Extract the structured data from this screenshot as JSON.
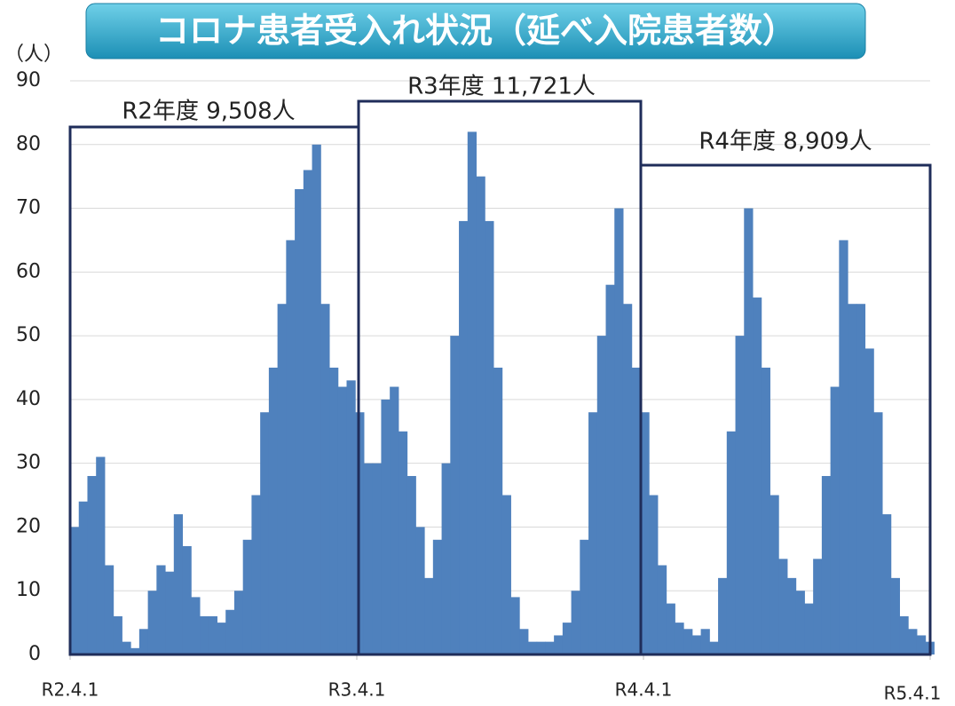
{
  "chart_data": {
    "type": "bar",
    "title": "コロナ患者受入れ状況（延べ入院患者数）",
    "y_label": "（人）",
    "annotations": [
      "R2年度 9,508人",
      "R3年度 11,721人",
      "R4年度 8,909人"
    ],
    "color": "#4f81bd",
    "grid": true,
    "xlim": [
      0,
      1095
    ],
    "xticks": [
      {
        "value": 0,
        "label": "R2.4.1"
      },
      {
        "value": 365,
        "label": "R3.4.1"
      },
      {
        "value": 730,
        "label": "R4.4.1"
      },
      {
        "value": 1095,
        "label": "R5.4.1"
      }
    ],
    "ylim": [
      0,
      90
    ],
    "yticks": [
      0,
      10,
      20,
      30,
      40,
      50,
      60,
      70,
      80,
      90
    ],
    "x": [
      0,
      11,
      22,
      33,
      44,
      55,
      66,
      77,
      88,
      99,
      110,
      121,
      132,
      143,
      154,
      165,
      176,
      187,
      198,
      209,
      220,
      231,
      242,
      253,
      264,
      275,
      286,
      297,
      308,
      319,
      330,
      341,
      352,
      363,
      374,
      385,
      396,
      407,
      418,
      429,
      440,
      451,
      462,
      473,
      484,
      495,
      506,
      517,
      528,
      539,
      550,
      561,
      572,
      583,
      594,
      605,
      616,
      627,
      638,
      649,
      660,
      671,
      682,
      693,
      704,
      715,
      726,
      737,
      748,
      759,
      770,
      781,
      792,
      803,
      814,
      825,
      836,
      847,
      858,
      869,
      880,
      891,
      902,
      913,
      924,
      935,
      946,
      957,
      968,
      979,
      990,
      1001,
      1012,
      1023,
      1034,
      1045,
      1056,
      1067,
      1078,
      1089
    ],
    "values": [
      20,
      24,
      28,
      31,
      14,
      6,
      2,
      1,
      4,
      10,
      14,
      13,
      22,
      17,
      9,
      6,
      6,
      5,
      7,
      10,
      18,
      25,
      38,
      45,
      55,
      65,
      73,
      76,
      80,
      55,
      45,
      42,
      43,
      38,
      30,
      30,
      40,
      42,
      35,
      28,
      20,
      12,
      18,
      30,
      50,
      68,
      82,
      75,
      68,
      45,
      25,
      9,
      4,
      2,
      2,
      2,
      3,
      5,
      10,
      18,
      38,
      50,
      58,
      70,
      55,
      45,
      38,
      25,
      14,
      8,
      5,
      4,
      3,
      4,
      2,
      12,
      35,
      50,
      70,
      56,
      45,
      25,
      15,
      12,
      10,
      8,
      15,
      28,
      42,
      65,
      55,
      55,
      48,
      38,
      22,
      12,
      6,
      4,
      3,
      2
    ]
  }
}
